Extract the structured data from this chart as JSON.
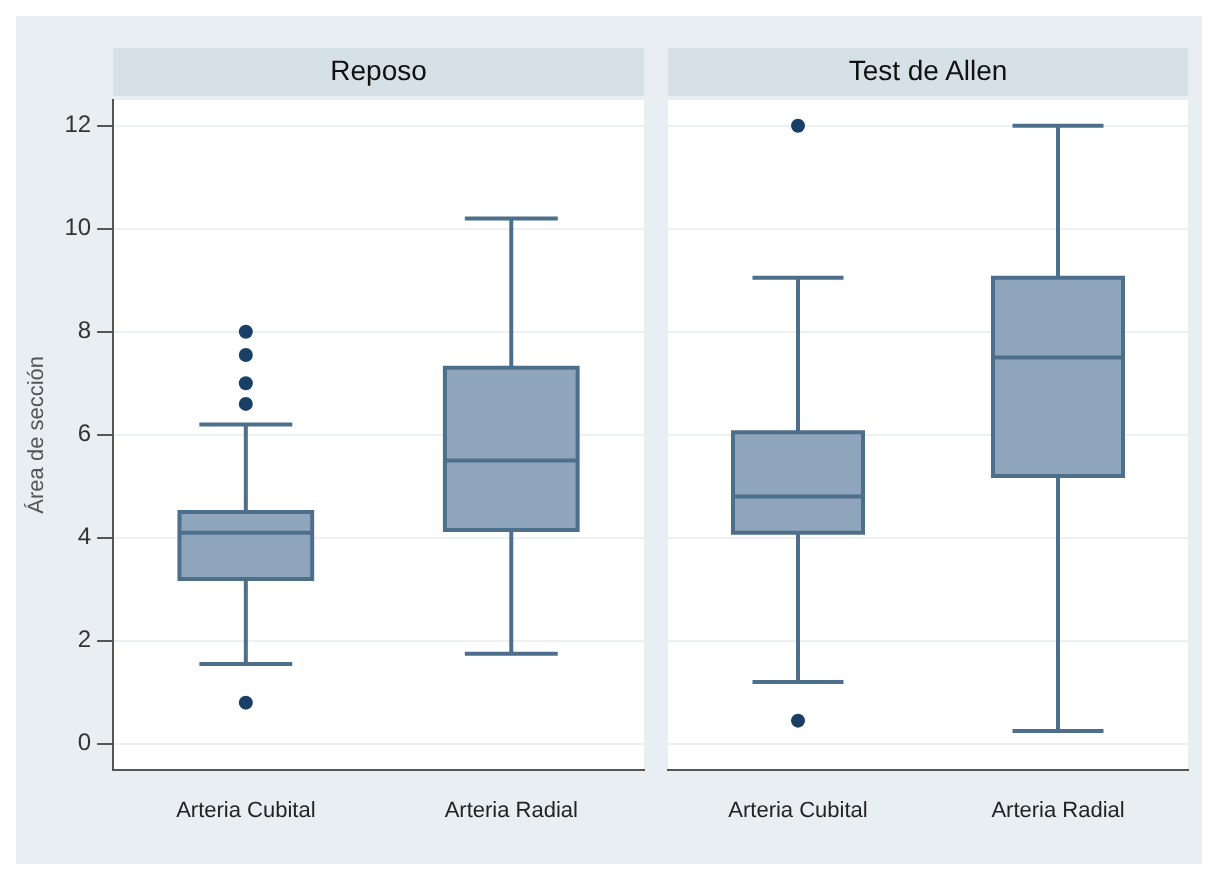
{
  "chart_data": [
    {
      "type": "box",
      "title": "Reposo",
      "ylabel": "Área de sección",
      "categories": [
        "Arteria Cubital",
        "Arteria Radial"
      ],
      "color": "#8fa5bb",
      "boxes": [
        {
          "low": 1.55,
          "q1": 3.2,
          "median": 4.1,
          "q3": 4.5,
          "high": 6.2,
          "outliers": [
            0.8,
            6.6,
            7.0,
            7.55,
            8.0
          ]
        },
        {
          "low": 1.75,
          "q1": 4.15,
          "median": 5.5,
          "q3": 7.3,
          "high": 10.2
        }
      ],
      "ylim": [
        -0.5,
        12.5
      ],
      "yticks": [
        0,
        2,
        4,
        6,
        8,
        10,
        12
      ],
      "grid": "y"
    },
    {
      "type": "box",
      "title": "Test de Allen",
      "categories": [
        "Arteria Cubital",
        "Arteria Radial"
      ],
      "color": "#8fa5bb",
      "boxes": [
        {
          "low": 1.2,
          "q1": 4.1,
          "median": 4.8,
          "q3": 6.05,
          "high": 9.05,
          "outliers": [
            0.45,
            12.0
          ]
        },
        {
          "low": 0.25,
          "q1": 5.2,
          "median": 7.5,
          "q3": 9.05,
          "high": 12.0
        }
      ],
      "ylim": [
        -0.5,
        12.5
      ],
      "yticks": [
        0,
        2,
        4,
        6,
        8,
        10,
        12
      ],
      "grid": "y",
      "tick_labels": "x"
    }
  ]
}
